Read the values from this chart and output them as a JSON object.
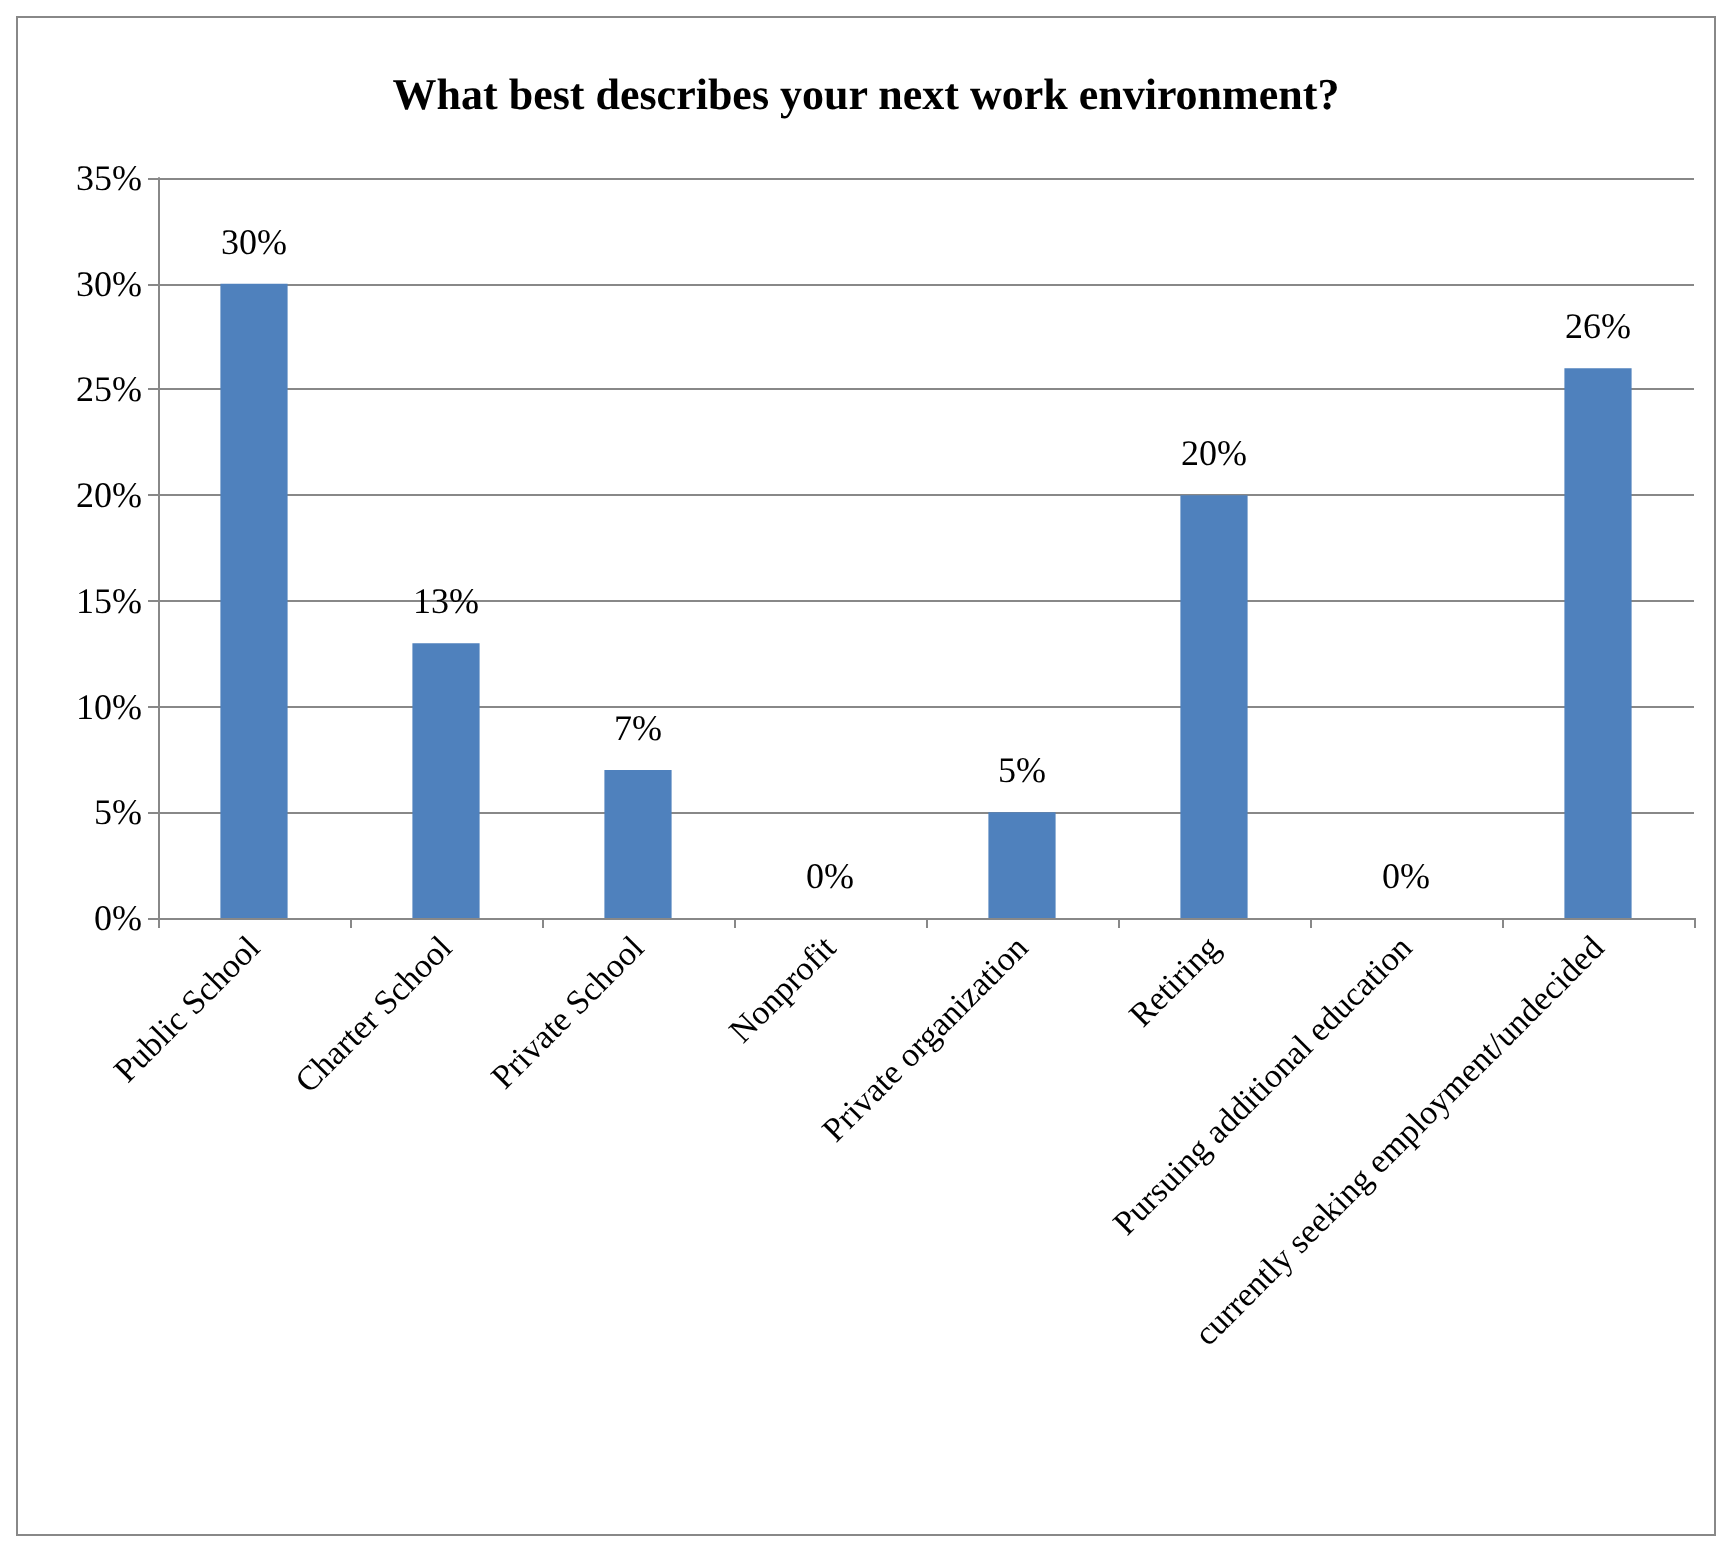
{
  "chart_data": {
    "type": "bar",
    "title": "What best describes your next work environment?",
    "categories": [
      "Public School",
      "Charter School",
      "Private School",
      "Nonprofit",
      "Private organization",
      "Retiring",
      "Pursuing additional education",
      "currently seeking employment/undecided"
    ],
    "values": [
      30,
      13,
      7,
      0,
      5,
      20,
      0,
      26
    ],
    "value_labels": [
      "30%",
      "13%",
      "7%",
      "0%",
      "5%",
      "20%",
      "0%",
      "26%"
    ],
    "color": "#4f81bd",
    "ylim": [
      0,
      35
    ],
    "yticks": [
      {
        "value": 0,
        "label": "0%"
      },
      {
        "value": 5,
        "label": "5%"
      },
      {
        "value": 10,
        "label": "10%"
      },
      {
        "value": 15,
        "label": "15%"
      },
      {
        "value": 20,
        "label": "20%"
      },
      {
        "value": 25,
        "label": "25%"
      },
      {
        "value": 30,
        "label": "30%"
      },
      {
        "value": 35,
        "label": "35%"
      }
    ],
    "grid": "y"
  }
}
